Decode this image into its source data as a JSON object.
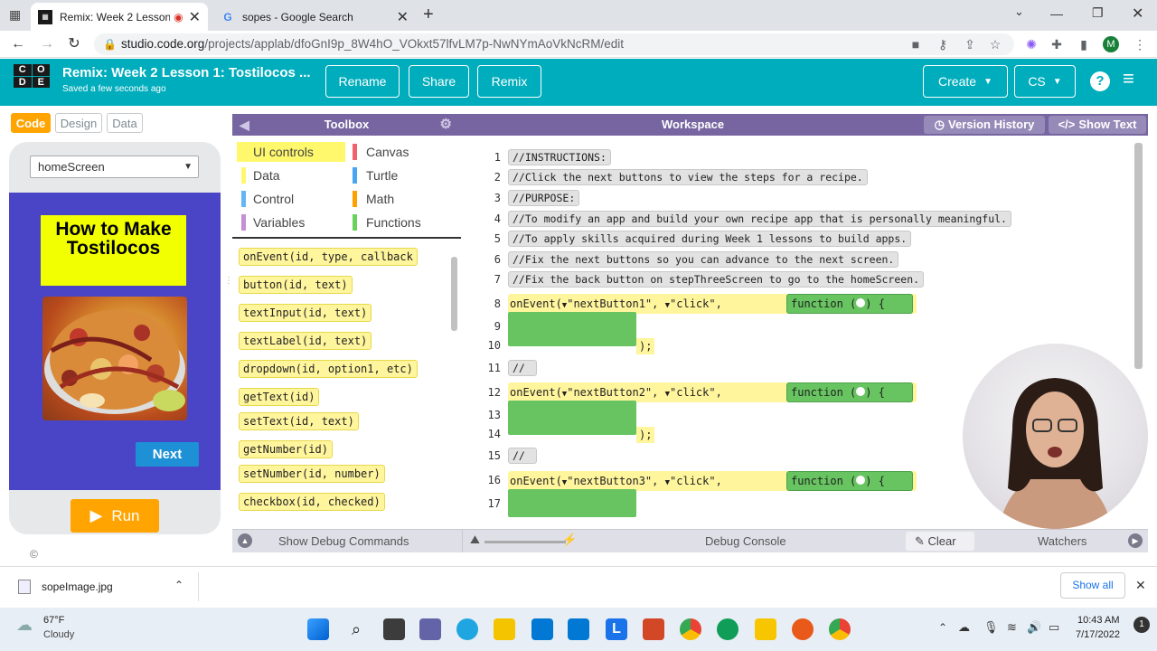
{
  "browser": {
    "tabs": [
      {
        "title": "Remix: Week 2 Lesson 1: Tos",
        "active": true
      },
      {
        "title": "sopes - Google Search",
        "active": false
      }
    ],
    "url_host": "studio.code.org",
    "url_path": "/projects/applab/dfoGnI9p_8W4hO_VOkxt57lfvLM7p-NwNYmAoVkNcRM/edit",
    "profile_letter": "M"
  },
  "header": {
    "logo_letters": [
      "C",
      "O",
      "D",
      "E"
    ],
    "project_title": "Remix: Week 2 Lesson 1: Tostilocos ...",
    "saved_text": "Saved a few seconds ago",
    "buttons": [
      "Rename",
      "Share",
      "Remix"
    ],
    "create_label": "Create",
    "lang_label": "CS",
    "help_icon": "?"
  },
  "left_panel": {
    "tabs": [
      "Code",
      "Design",
      "Data"
    ],
    "screen_select": "homeScreen",
    "app_title": "How to Make Tostilocos",
    "next_label": "Next",
    "run_label": "Run"
  },
  "toolbox": {
    "header": "Toolbox",
    "categories": [
      {
        "label": "UI controls",
        "color": "#fff86d"
      },
      {
        "label": "Canvas",
        "color": "#f0626f"
      },
      {
        "label": "Data",
        "color": "#fff86d"
      },
      {
        "label": "Turtle",
        "color": "#46a6f3"
      },
      {
        "label": "Control",
        "color": "#64b5f6"
      },
      {
        "label": "Math",
        "color": "#ffa000"
      },
      {
        "label": "Variables",
        "color": "#c48fd4"
      },
      {
        "label": "Functions",
        "color": "#68d25d"
      }
    ],
    "blocks": [
      "onEvent(id, type, callback",
      "button(id, text)",
      "textInput(id, text)",
      "textLabel(id, text)",
      "dropdown(id, option1, etc)",
      "getText(id)",
      "setText(id, text)",
      "getNumber(id)",
      "setNumber(id, number)",
      "checkbox(id, checked)"
    ]
  },
  "workspace": {
    "header": "Workspace",
    "version_history": "Version History",
    "show_text": "Show Text",
    "comments": [
      "INSTRUCTIONS:",
      "Click the next buttons to view the steps for a recipe.",
      "PURPOSE:",
      "To modify an app and build your own recipe app that is personally meaningful.",
      "To apply skills acquired during Week 1 lessons to build apps.",
      "Fix the next buttons so you can advance to the next screen.",
      "Fix the back button on stepThreeScreen to go to the homeScreen."
    ],
    "line_numbers": [
      "1",
      "2",
      "3",
      "4",
      "5",
      "6",
      "7",
      "8",
      "9",
      "10",
      "11",
      "12",
      "13",
      "14",
      "15",
      "16",
      "17"
    ],
    "events": [
      {
        "id": "\"nextButton1\"",
        "type": "\"click\""
      },
      {
        "id": "\"nextButton2\"",
        "type": "\"click\""
      },
      {
        "id": "\"nextButton3\"",
        "type": "\"click\""
      }
    ],
    "on_event_kw": "onEvent(",
    "function_kw": "function",
    "closer": ");"
  },
  "debug": {
    "show_debug": "Show Debug Commands",
    "console": "Debug Console",
    "clear": "Clear",
    "watchers": "Watchers"
  },
  "downloads": {
    "file": "sopeImage.jpg",
    "show_all": "Show all"
  },
  "taskbar": {
    "temp": "67°F",
    "weather": "Cloudy",
    "time": "10:43 AM",
    "date": "7/17/2022"
  }
}
